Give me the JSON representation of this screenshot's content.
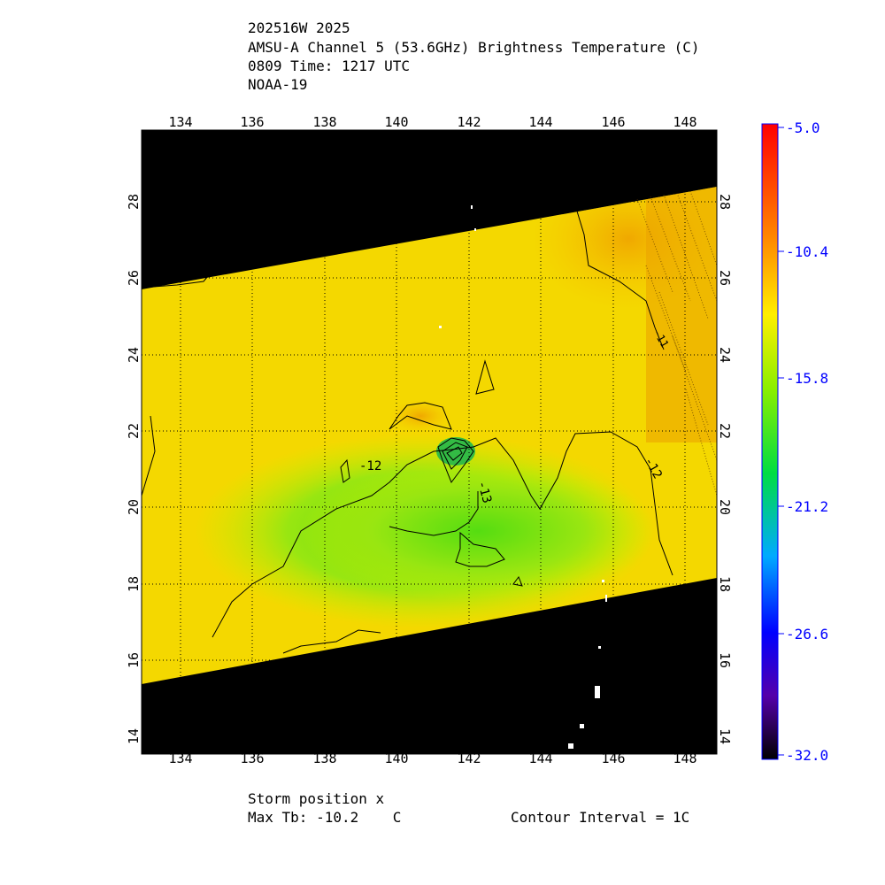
{
  "header": {
    "line1": "202516W 2025",
    "line2": "AMSU-A Channel 5 (53.6GHz) Brightness Temperature (C)",
    "line3": "0809 Time: 1217 UTC",
    "line4": "NOAA-19"
  },
  "map": {
    "lon_ticks": [
      "134",
      "136",
      "138",
      "140",
      "142",
      "144",
      "146",
      "148"
    ],
    "lat_ticks": [
      "14",
      "16",
      "18",
      "20",
      "22",
      "24",
      "26",
      "28"
    ],
    "contour_labels": [
      "-12",
      "-13",
      "-12",
      "-11"
    ]
  },
  "colorbar": {
    "labels": [
      "-5.0",
      "-10.4",
      "-15.8",
      "-21.2",
      "-26.6",
      "-32.0"
    ],
    "label_color": "#0000ff"
  },
  "footer": {
    "storm_position": "Storm position x",
    "max_tb": "Max Tb: -10.2    C",
    "contour_interval": "Contour Interval = 1C"
  }
}
